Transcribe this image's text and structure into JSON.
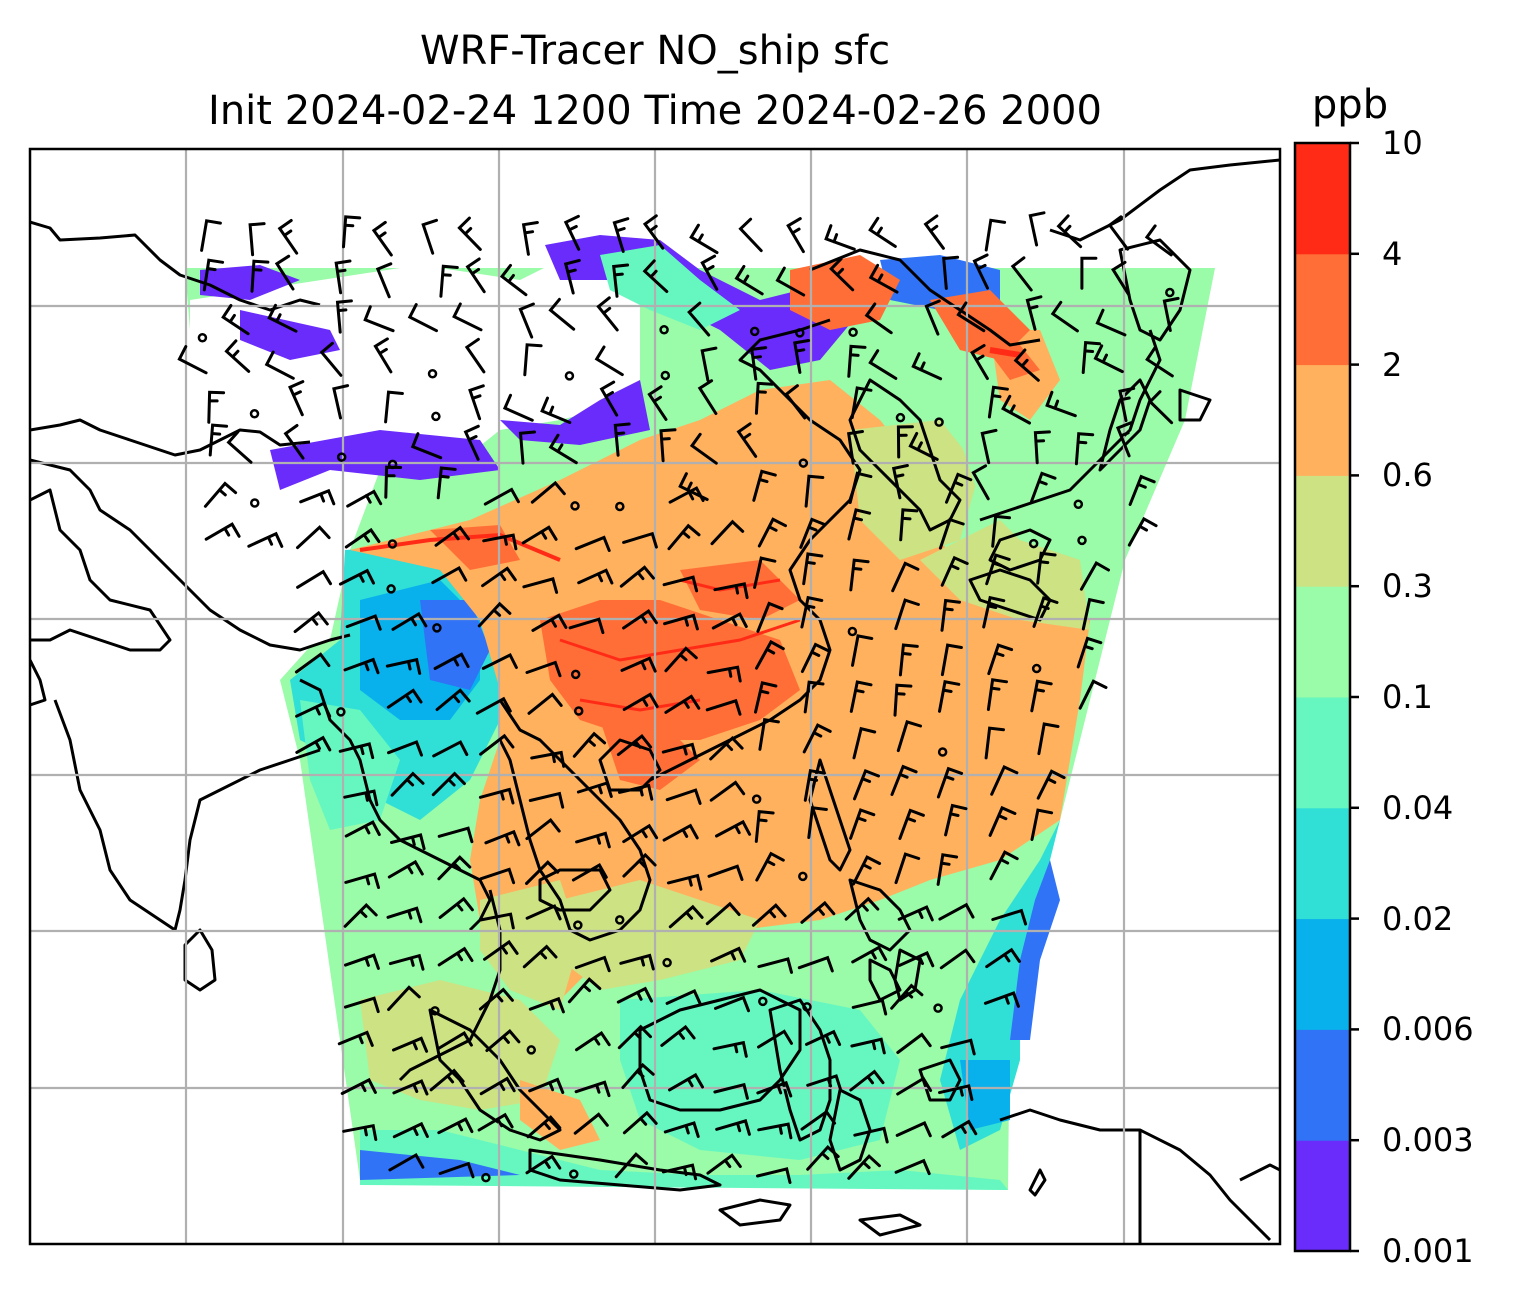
{
  "title": {
    "line1": "WRF-Tracer NO_ship sfc",
    "line2": "Init 2024-02-24 1200 Time 2024-02-26 2000"
  },
  "colorbar": {
    "unit": "ppb",
    "ticks": [
      "0.001",
      "0.003",
      "0.006",
      "0.02",
      "0.04",
      "0.1",
      "0.3",
      "0.6",
      "2",
      "4",
      "10"
    ],
    "colors": [
      "#6a2cfb",
      "#3073f6",
      "#08b0ec",
      "#30dfd6",
      "#66f7c1",
      "#9afba8",
      "#cde283",
      "#ffb15e",
      "#ff6e37",
      "#ff2b17"
    ]
  },
  "icons": {
    "wind-barbs": "wind-barb-icon",
    "calm-circles": "calm-wind-circle-icon"
  }
}
